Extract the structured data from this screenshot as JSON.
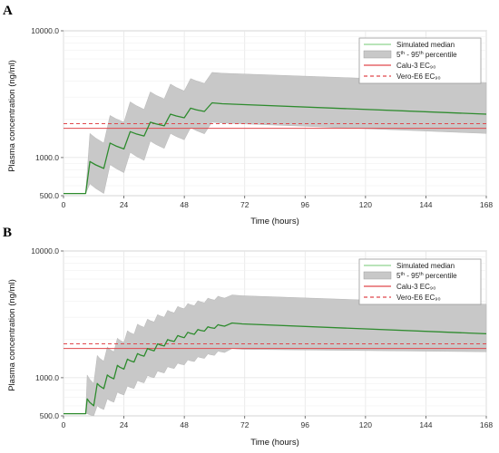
{
  "chart_data": [
    {
      "panel": "A",
      "type": "line",
      "xlabel": "Time (hours)",
      "ylabel": "Plasma concentration (ng/ml)",
      "xlim": [
        0,
        168
      ],
      "ylim": [
        500,
        10000
      ],
      "yscale": "log",
      "xticks": [
        0,
        24,
        48,
        72,
        96,
        120,
        144,
        168
      ],
      "xtick_labels": [
        "0",
        "24",
        "48",
        "72",
        "96",
        "120",
        "144",
        "168"
      ],
      "yticks": [
        500,
        1000,
        10000
      ],
      "ytick_labels": [
        "500.0",
        "1000.0",
        "10000.0"
      ],
      "grid": true,
      "legend_position": "top-right",
      "legend": {
        "median": "Simulated median",
        "percentile_prefix": "5",
        "percentile_sup1": "th",
        "percentile_mid": " - 95",
        "percentile_sup2": "th",
        "percentile_suffix": " percentile",
        "ref1": "Calu-3 EC₉₀",
        "ref2": "Vero-E6 EC₉₀"
      },
      "dose_times": [
        8,
        16,
        24,
        32,
        40,
        48,
        56
      ],
      "median": {
        "pre_dose_level": 520,
        "peaks": [
          930,
          1300,
          1600,
          1900,
          2200,
          2450,
          2700
        ],
        "troughs": [
          820,
          1170,
          1480,
          1780,
          2060,
          2310
        ],
        "end_value": 2200
      },
      "band": {
        "upper_peaks": [
          1550,
          2150,
          2750,
          3300,
          3800,
          4200,
          4700
        ],
        "upper_troughs": [
          1300,
          1900,
          2400,
          2900,
          3350,
          3850
        ],
        "upper_end": 3900,
        "lower_peaks": [
          620,
          880,
          1100,
          1350,
          1550,
          1720,
          1900
        ],
        "lower_troughs": [
          520,
          760,
          950,
          1180,
          1380,
          1540
        ],
        "lower_end": 1550
      },
      "ec90_lines": {
        "calu3": 1700,
        "vero_e6": 1850
      },
      "colors": {
        "median": "#2e8b2e",
        "band": "#c8c8c8",
        "calu3": "#e0474c",
        "vero_e6": "#e0474c"
      }
    },
    {
      "panel": "B",
      "type": "line",
      "xlabel": "Time (hours)",
      "ylabel": "Plasma concentration (ng/ml)",
      "xlim": [
        0,
        168
      ],
      "ylim": [
        500,
        10000
      ],
      "yscale": "log",
      "xticks": [
        0,
        24,
        48,
        72,
        96,
        120,
        144,
        168
      ],
      "xtick_labels": [
        "0",
        "24",
        "48",
        "72",
        "96",
        "120",
        "144",
        "168"
      ],
      "yticks": [
        500,
        1000,
        10000
      ],
      "ytick_labels": [
        "500.0",
        "1000.0",
        "10000.0"
      ],
      "grid": true,
      "legend_position": "top-right",
      "legend": {
        "median": "Simulated median",
        "percentile_prefix": "5",
        "percentile_sup1": "th",
        "percentile_mid": " - 95",
        "percentile_sup2": "th",
        "percentile_suffix": " percentile",
        "ref1": "Calu-3 EC₉₀",
        "ref2": "Vero-E6 EC₉₀"
      },
      "dose_times": [
        8,
        12,
        16,
        20,
        24,
        28,
        32,
        36,
        40,
        44,
        48,
        52,
        56,
        60,
        64
      ],
      "median": {
        "pre_dose_level": 520,
        "peaks": [
          680,
          900,
          1050,
          1250,
          1400,
          1550,
          1700,
          1850,
          2000,
          2150,
          2280,
          2400,
          2520,
          2620,
          2700
        ],
        "troughs": [
          600,
          820,
          980,
          1170,
          1330,
          1480,
          1630,
          1780,
          1930,
          2070,
          2200,
          2330,
          2450,
          2550
        ],
        "end_value": 2220
      },
      "band": {
        "upper_peaks": [
          1050,
          1500,
          1750,
          2050,
          2350,
          2650,
          2900,
          3150,
          3400,
          3650,
          3850,
          4050,
          4250,
          4400,
          4500
        ],
        "upper_troughs": [
          900,
          1350,
          1600,
          1900,
          2200,
          2500,
          2750,
          3000,
          3250,
          3500,
          3700,
          3900,
          4100,
          4250
        ],
        "upper_end": 3800,
        "lower_peaks": [
          520,
          600,
          680,
          770,
          860,
          950,
          1040,
          1130,
          1220,
          1300,
          1380,
          1460,
          1540,
          1620,
          1700
        ],
        "lower_troughs": [
          500,
          560,
          640,
          730,
          820,
          910,
          1000,
          1090,
          1180,
          1260,
          1340,
          1420,
          1500,
          1580
        ],
        "lower_end": 1600
      },
      "ec90_lines": {
        "calu3": 1700,
        "vero_e6": 1850
      },
      "colors": {
        "median": "#2e8b2e",
        "band": "#c8c8c8",
        "calu3": "#e0474c",
        "vero_e6": "#e0474c"
      }
    }
  ]
}
